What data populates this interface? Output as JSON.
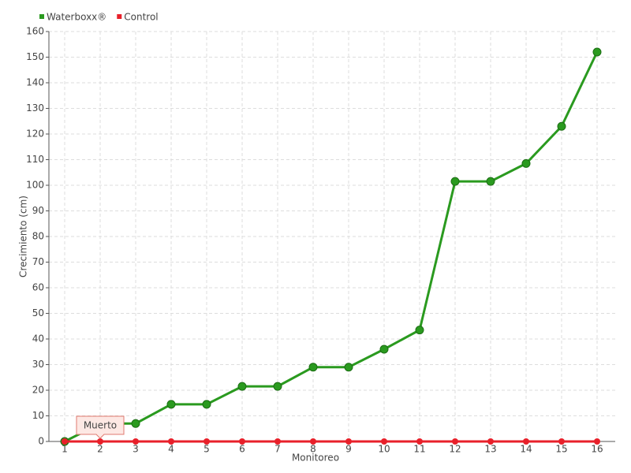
{
  "chart_data": {
    "type": "line",
    "x_label": "Monitoreo",
    "y_label": "Crecimiento (cm)",
    "categories": [
      "1",
      "2",
      "3",
      "4",
      "5",
      "6",
      "7",
      "8",
      "9",
      "10",
      "11",
      "12",
      "13",
      "14",
      "15",
      "16"
    ],
    "series": [
      {
        "name": "Waterboxx®",
        "color": "#2a9a1f",
        "values": [
          0,
          7,
          7,
          14.5,
          14.5,
          21.5,
          21.5,
          29,
          29,
          36,
          43.5,
          101.5,
          101.5,
          108.5,
          123,
          152
        ]
      },
      {
        "name": "Control",
        "color": "#e8202a",
        "values": [
          0,
          0,
          0,
          0,
          0,
          0,
          0,
          0,
          0,
          0,
          0,
          0,
          0,
          0,
          0,
          0
        ]
      }
    ],
    "annotation": "Muerto",
    "ylim": [
      0,
      160
    ],
    "yticks": [
      0,
      10,
      20,
      30,
      40,
      50,
      60,
      70,
      80,
      90,
      100,
      110,
      120,
      130,
      140,
      150,
      160
    ],
    "grid": true,
    "legend": "top-left"
  }
}
